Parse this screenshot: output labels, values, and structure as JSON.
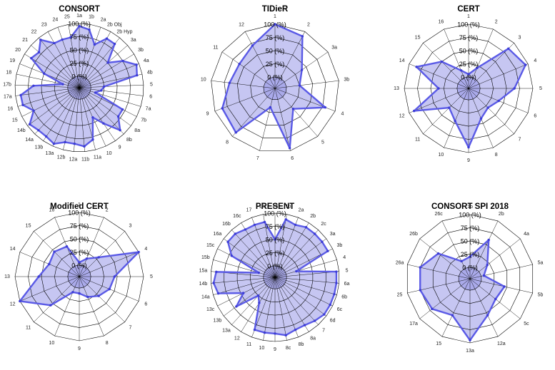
{
  "chart_data": [
    {
      "type": "radar",
      "title": "CONSORT",
      "radial_ticks": [
        "100 (%)",
        "75 (%)",
        "50 (%)",
        "25 (%)",
        "0 (%)"
      ],
      "rlim": [
        0,
        100
      ],
      "categories": [
        "1a",
        "1b",
        "2a",
        "2b Obj",
        "2b Hyp",
        "3a",
        "3b",
        "4a",
        "4b",
        "5",
        "6",
        "7a",
        "7b",
        "8a",
        "8b",
        "9",
        "10",
        "11a",
        "11b",
        "12a",
        "12b",
        "13a",
        "13b",
        "14a",
        "14b",
        "15",
        "16",
        "17a",
        "17b",
        "18",
        "19",
        "20",
        "21",
        "22",
        "23",
        "24",
        "25"
      ],
      "series": [
        {
          "name": "CONSORT",
          "values": [
            95,
            90,
            65,
            85,
            85,
            50,
            75,
            95,
            90,
            25,
            20,
            10,
            70,
            70,
            90,
            60,
            40,
            80,
            90,
            85,
            85,
            95,
            90,
            90,
            95,
            75,
            90,
            90,
            65,
            10,
            50,
            85,
            80,
            95,
            75,
            75,
            75
          ]
        }
      ]
    },
    {
      "type": "radar",
      "title": "TIDieR",
      "radial_ticks": [
        "100 (%)",
        "75 (%)",
        "50 (%)",
        "25 (%)",
        "0 (%)"
      ],
      "rlim": [
        0,
        100
      ],
      "categories": [
        "1",
        "2",
        "3a",
        "3b",
        "4",
        "5",
        "6",
        "7",
        "8",
        "9",
        "10",
        "11",
        "12"
      ],
      "series": [
        {
          "name": "TIDieR",
          "values": [
            100,
            90,
            40,
            25,
            80,
            30,
            95,
            15,
            90,
            85,
            65,
            60,
            70
          ]
        }
      ]
    },
    {
      "type": "radar",
      "title": "CERT",
      "radial_ticks": [
        "100 (%)",
        "75 (%)",
        "50 (%)",
        "25 (%)",
        "0 (%)"
      ],
      "rlim": [
        0,
        100
      ],
      "categories": [
        "1",
        "2",
        "3",
        "4",
        "5",
        "6",
        "7",
        "8",
        "9",
        "10",
        "11",
        "12",
        "13",
        "14",
        "15",
        "16"
      ],
      "series": [
        {
          "name": "CERT",
          "values": [
            5,
            20,
            85,
            95,
            65,
            40,
            30,
            40,
            90,
            45,
            30,
            90,
            35,
            85,
            50,
            15
          ]
        }
      ]
    },
    {
      "type": "radar",
      "title": "Modified CERT",
      "radial_ticks": [
        "100 (%)",
        "75 (%)",
        "50 (%)",
        "25 (%)",
        "0 (%)"
      ],
      "rlim": [
        0,
        100
      ],
      "categories": [
        "1",
        "2",
        "3",
        "4",
        "5",
        "6",
        "7",
        "8",
        "9",
        "10",
        "11",
        "12",
        "13",
        "14",
        "15",
        "16"
      ],
      "series": [
        {
          "name": "Modified CERT",
          "values": [
            5,
            15,
            30,
            100,
            45,
            40,
            30,
            20,
            10,
            10,
            55,
            100,
            55,
            40,
            45,
            40
          ]
        }
      ]
    },
    {
      "type": "radar",
      "title": "PRESENT",
      "radial_ticks": [
        "100 (%)",
        "75 (%)",
        "50 (%)",
        "25 (%)",
        "0 (%)"
      ],
      "rlim": [
        0,
        100
      ],
      "categories": [
        "1a",
        "1b",
        "2a",
        "2b",
        "2c",
        "3a",
        "3b",
        "4",
        "5",
        "6a",
        "6b",
        "6c",
        "6d",
        "7",
        "8a",
        "8b",
        "8c",
        "9",
        "10",
        "11",
        "12",
        "13a",
        "13b",
        "13c",
        "14a",
        "14b",
        "15a",
        "15b",
        "15c",
        "16a",
        "16b",
        "16c",
        "17",
        "18"
      ],
      "series": [
        {
          "name": "PRESENT",
          "values": [
            50,
            90,
            85,
            90,
            90,
            90,
            90,
            20,
            95,
            95,
            95,
            95,
            95,
            90,
            85,
            85,
            90,
            85,
            85,
            85,
            35,
            25,
            70,
            45,
            90,
            95,
            90,
            10,
            70,
            90,
            90,
            85,
            85,
            85
          ]
        }
      ]
    },
    {
      "type": "radar",
      "title": "CONSORT SPI 2018",
      "radial_ticks": [
        "100 (%)",
        "75 (%)",
        "50 (%)",
        "25 (%)",
        "0 (%)"
      ],
      "rlim": [
        0,
        100
      ],
      "categories": [
        "1b",
        "2b",
        "4a",
        "5a",
        "5b",
        "5c",
        "12a",
        "13a",
        "15",
        "17a",
        "25",
        "26a",
        "26b",
        "26c"
      ],
      "series": [
        {
          "name": "CONSORT SPI 2018",
          "values": [
            20,
            60,
            20,
            5,
            45,
            40,
            55,
            95,
            55,
            70,
            75,
            75,
            55,
            15
          ]
        }
      ]
    }
  ]
}
